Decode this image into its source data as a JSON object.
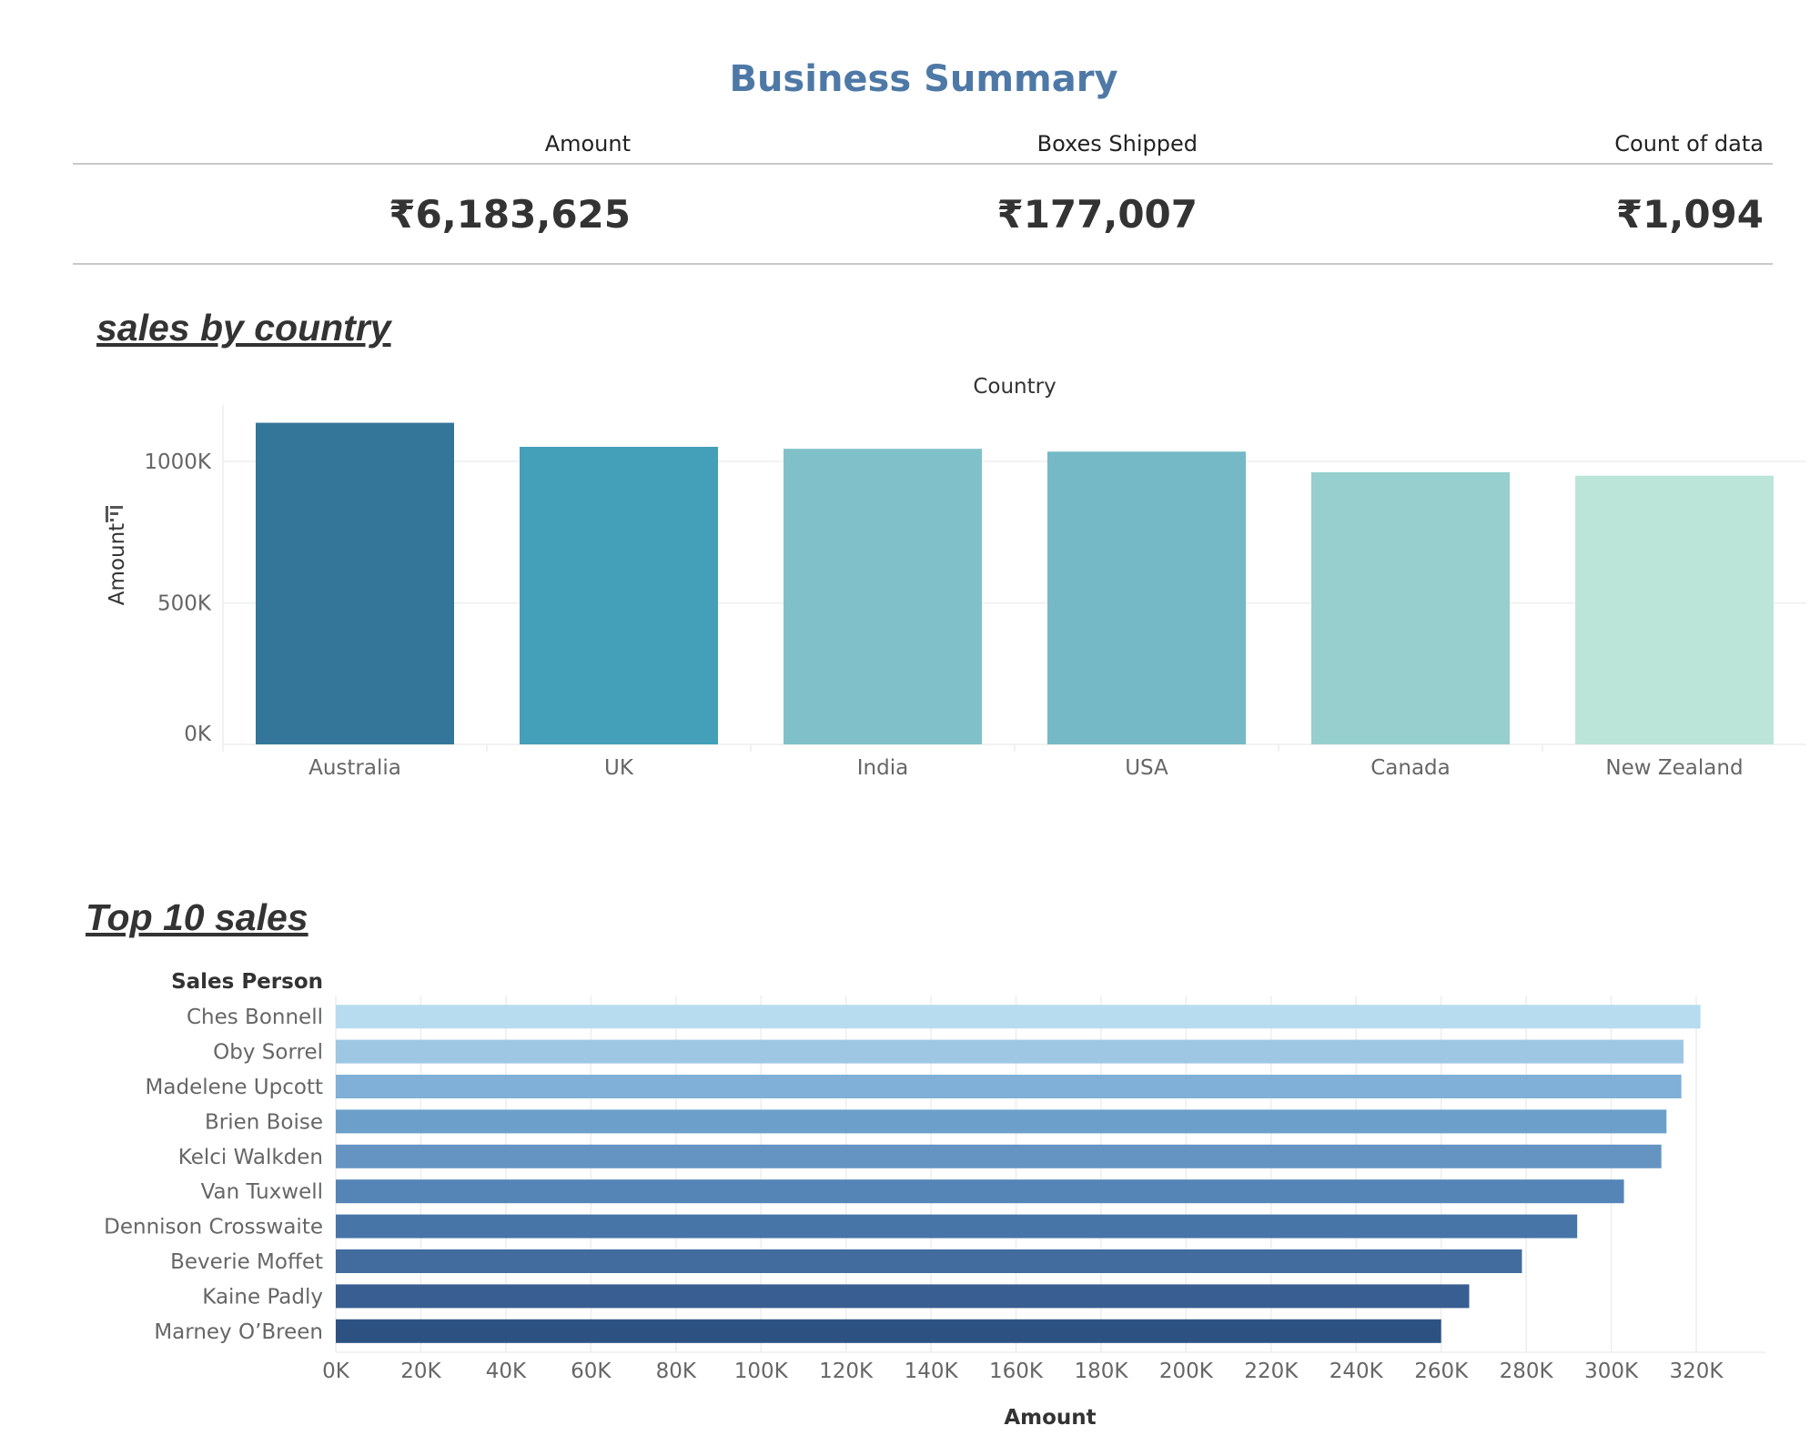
{
  "header": {
    "title": "Business Summary"
  },
  "kpis": [
    {
      "label": "Amount",
      "value": "₹6,183,625"
    },
    {
      "label": "Boxes Shipped",
      "value": "₹177,007"
    },
    {
      "label": "Count of data",
      "value": "₹1,094"
    }
  ],
  "sections": {
    "country": "sales by country",
    "top10": "Top 10 sales"
  },
  "colors": {
    "title": "#4e79a7",
    "country_bars": [
      "#33769a",
      "#449fb8",
      "#80c1c9",
      "#74b9c5",
      "#96cfce",
      "#bce5d9"
    ],
    "person_bars": [
      "#b7dcf0",
      "#9dc7e3",
      "#80b0d8",
      "#6c9fca",
      "#6594c2",
      "#5585b7",
      "#4775a7",
      "#416c9d",
      "#395f92",
      "#2d5282"
    ]
  },
  "chart_data": [
    {
      "type": "bar",
      "orientation": "vertical",
      "title": "sales by country",
      "xlabel": "Country",
      "ylabel": "Amount",
      "categories": [
        "Australia",
        "UK",
        "India",
        "USA",
        "Canada",
        "New Zealand"
      ],
      "values": [
        1137000,
        1052000,
        1045000,
        1035000,
        962000,
        950000
      ],
      "ylim": [
        0,
        1200000
      ],
      "yticks": [
        0,
        500000,
        1000000
      ],
      "ytick_labels": [
        "0K",
        "500K",
        "1000K"
      ],
      "grid": true
    },
    {
      "type": "bar",
      "orientation": "horizontal",
      "title": "Top 10 sales",
      "xlabel": "Amount",
      "ylabel": "Sales Person",
      "categories": [
        "Ches Bonnell",
        "Oby Sorrel",
        "Madelene Upcott",
        "Brien Boise",
        "Kelci Walkden",
        "Van Tuxwell",
        "Dennison Crosswaite",
        "Beverie Moffet",
        "Kaine Padly",
        "Marney O’Breen"
      ],
      "values": [
        321000,
        317000,
        316500,
        313000,
        311800,
        303000,
        292000,
        279000,
        266600,
        260000
      ],
      "xlim": [
        0,
        335000
      ],
      "xticks": [
        0,
        20000,
        40000,
        60000,
        80000,
        100000,
        120000,
        140000,
        160000,
        180000,
        200000,
        220000,
        240000,
        260000,
        280000,
        300000,
        320000
      ],
      "xtick_labels": [
        "0K",
        "20K",
        "40K",
        "60K",
        "80K",
        "100K",
        "120K",
        "140K",
        "160K",
        "180K",
        "200K",
        "220K",
        "240K",
        "260K",
        "280K",
        "300K",
        "320K"
      ],
      "grid": true
    }
  ]
}
